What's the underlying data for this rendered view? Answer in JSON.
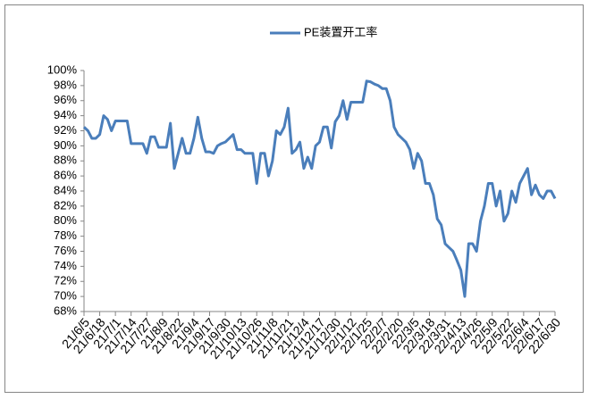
{
  "chart_data": {
    "type": "line",
    "categories": [
      "21/6/5",
      null,
      null,
      null,
      "21/6/18",
      null,
      null,
      null,
      "21/7/1",
      null,
      null,
      null,
      "21/7/14",
      null,
      null,
      null,
      "21/7/27",
      null,
      null,
      null,
      "21/8/9",
      null,
      null,
      null,
      "21/8/22",
      null,
      null,
      null,
      "21/9/4",
      null,
      null,
      null,
      "21/9/17",
      null,
      null,
      null,
      "21/9/30",
      null,
      null,
      null,
      "21/10/13",
      null,
      null,
      null,
      "21/10/26",
      null,
      null,
      null,
      "21/11/8",
      null,
      null,
      null,
      "21/11/21",
      null,
      null,
      null,
      "21/12/4",
      null,
      null,
      null,
      "21/12/17",
      null,
      null,
      null,
      "21/12/30",
      null,
      null,
      null,
      "22/1/12",
      null,
      null,
      null,
      "22/1/25",
      null,
      null,
      null,
      "22/2/7",
      null,
      null,
      null,
      "22/2/20",
      null,
      null,
      null,
      "22/3/5",
      null,
      null,
      null,
      "22/3/18",
      null,
      null,
      null,
      "22/3/31",
      null,
      null,
      null,
      "22/4/13",
      null,
      null,
      null,
      "22/4/26",
      null,
      null,
      null,
      "22/5/9",
      null,
      null,
      null,
      "22/5/22",
      null,
      null,
      null,
      "22/6/4",
      null,
      null,
      null,
      "22/6/17",
      null,
      null,
      null,
      "22/6/30"
    ],
    "series": [
      {
        "name": "PE装置开工率",
        "color": "#4a7ebb",
        "values": [
          92.5,
          92,
          91,
          91,
          91.5,
          94,
          93.5,
          92,
          93.3,
          93.3,
          93.3,
          93.3,
          90.3,
          90.3,
          90.3,
          90.3,
          89,
          91.2,
          91.2,
          89.8,
          89.8,
          89.8,
          93,
          87,
          89,
          91,
          89,
          89,
          91,
          93.8,
          91,
          89.2,
          89.2,
          89,
          90,
          90.3,
          90.5,
          91,
          91.5,
          89.5,
          89.5,
          89,
          89,
          89,
          85,
          89,
          89,
          86,
          88,
          92,
          91.5,
          92.5,
          95,
          89,
          89.5,
          90.5,
          87,
          88.5,
          87,
          90,
          90.5,
          92.5,
          92.5,
          89.7,
          93.2,
          94,
          96,
          93.5,
          95.8,
          95.8,
          95.8,
          95.8,
          98.6,
          98.5,
          98.2,
          98,
          97.6,
          97.6,
          96,
          92.5,
          91.5,
          91,
          90.5,
          89.5,
          87,
          89,
          88,
          85,
          85,
          83.5,
          80.3,
          79.5,
          77,
          76.5,
          76,
          74.8,
          73.5,
          70,
          77,
          77,
          76,
          80,
          82,
          85,
          85,
          82,
          84,
          80,
          81,
          84,
          82.5,
          85,
          86,
          87,
          83.5,
          84.8,
          83.5,
          83,
          84,
          84,
          83
        ]
      }
    ],
    "ylim": [
      68,
      100
    ],
    "yticks": [
      {
        "value": 68,
        "label": "68%"
      },
      {
        "value": 70,
        "label": "70%"
      },
      {
        "value": 72,
        "label": "72%"
      },
      {
        "value": 74,
        "label": "74%"
      },
      {
        "value": 76,
        "label": "76%"
      },
      {
        "value": 78,
        "label": "78%"
      },
      {
        "value": 80,
        "label": "80%"
      },
      {
        "value": 82,
        "label": "82%"
      },
      {
        "value": 84,
        "label": "84%"
      },
      {
        "value": 86,
        "label": "86%"
      },
      {
        "value": 88,
        "label": "88%"
      },
      {
        "value": 90,
        "label": "90%"
      },
      {
        "value": 92,
        "label": "92%"
      },
      {
        "value": 94,
        "label": "94%"
      },
      {
        "value": 96,
        "label": "96%"
      },
      {
        "value": 98,
        "label": "98%"
      },
      {
        "value": 100,
        "label": "100%"
      }
    ],
    "grid": false,
    "legend": "top"
  }
}
